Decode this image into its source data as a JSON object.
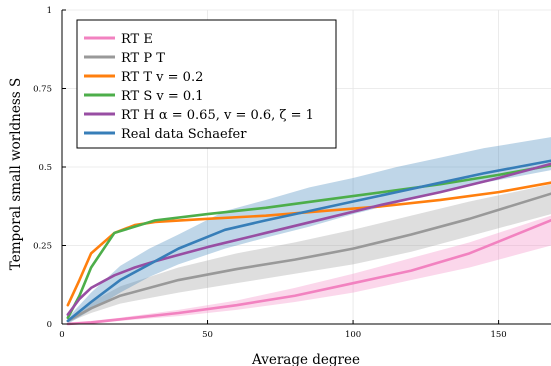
{
  "chart_data": {
    "type": "line",
    "xlabel": "Average degree",
    "ylabel": "Temporal small worldness S",
    "xlim": [
      0,
      168
    ],
    "ylim": [
      0,
      1
    ],
    "x_ticks": [
      "0",
      "50",
      "100",
      "150"
    ],
    "y_ticks": [
      "0",
      "0.25",
      "0.5",
      "0.75",
      "1"
    ],
    "legend_placement": "top-left",
    "grid": true,
    "series": [
      {
        "name": "RT E",
        "color": "#f282c0",
        "x": [
          2,
          10,
          20,
          40,
          60,
          80,
          100,
          120,
          140,
          168
        ],
        "values": [
          0.0,
          0.005,
          0.015,
          0.035,
          0.06,
          0.09,
          0.13,
          0.17,
          0.225,
          0.33
        ],
        "band_lower": [
          0.0,
          0.0,
          0.01,
          0.025,
          0.045,
          0.07,
          0.1,
          0.14,
          0.18,
          0.25
        ],
        "band_upper": [
          0.005,
          0.01,
          0.02,
          0.045,
          0.075,
          0.115,
          0.16,
          0.21,
          0.26,
          0.345
        ]
      },
      {
        "name": "RT P T",
        "color": "#999999",
        "x": [
          2,
          10,
          20,
          40,
          60,
          80,
          100,
          120,
          140,
          168
        ],
        "values": [
          0.01,
          0.05,
          0.09,
          0.14,
          0.175,
          0.205,
          0.24,
          0.285,
          0.335,
          0.415
        ],
        "band_lower": [
          0.005,
          0.035,
          0.065,
          0.1,
          0.13,
          0.16,
          0.19,
          0.23,
          0.28,
          0.35
        ],
        "band_upper": [
          0.015,
          0.07,
          0.12,
          0.18,
          0.225,
          0.26,
          0.3,
          0.345,
          0.39,
          0.445
        ]
      },
      {
        "name": "RT T v = 0.2",
        "color": "#ff7f0e",
        "x": [
          2,
          6,
          10,
          18,
          25,
          32,
          50,
          70,
          90,
          110,
          130,
          150,
          168
        ],
        "values": [
          0.06,
          0.14,
          0.225,
          0.29,
          0.315,
          0.325,
          0.335,
          0.345,
          0.36,
          0.375,
          0.395,
          0.42,
          0.45
        ]
      },
      {
        "name": "RT S v = 0.1",
        "color": "#4dae4a",
        "x": [
          2,
          6,
          10,
          18,
          25,
          32,
          50,
          70,
          90,
          110,
          130,
          150,
          168
        ],
        "values": [
          0.02,
          0.09,
          0.18,
          0.29,
          0.31,
          0.33,
          0.35,
          0.37,
          0.395,
          0.42,
          0.445,
          0.475,
          0.505
        ]
      },
      {
        "name": "RT H α = 0.65, v = 0.6, ζ = 1",
        "color": "#984ea3",
        "x": [
          2,
          6,
          10,
          18,
          25,
          32,
          50,
          70,
          90,
          110,
          130,
          150,
          168
        ],
        "values": [
          0.03,
          0.08,
          0.115,
          0.155,
          0.18,
          0.2,
          0.245,
          0.29,
          0.335,
          0.38,
          0.42,
          0.465,
          0.51
        ]
      },
      {
        "name": "Real data Schaefer",
        "color": "#377eb8",
        "x": [
          2,
          10,
          20,
          30,
          40,
          56,
          70,
          85,
          100,
          115,
          130,
          145,
          168
        ],
        "values": [
          0.01,
          0.07,
          0.14,
          0.19,
          0.24,
          0.3,
          0.33,
          0.36,
          0.39,
          0.42,
          0.45,
          0.48,
          0.52
        ],
        "band_lower": [
          0.0,
          0.045,
          0.1,
          0.15,
          0.19,
          0.24,
          0.275,
          0.31,
          0.35,
          0.385,
          0.42,
          0.45,
          0.49
        ],
        "band_upper": [
          0.02,
          0.1,
          0.185,
          0.24,
          0.285,
          0.36,
          0.395,
          0.435,
          0.465,
          0.5,
          0.53,
          0.56,
          0.595
        ]
      }
    ]
  }
}
